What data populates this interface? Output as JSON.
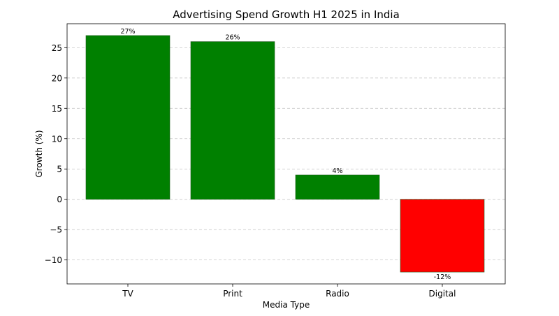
{
  "chart_data": {
    "type": "bar",
    "title": "Advertising Spend Growth H1 2025 in India",
    "xlabel": "Media Type",
    "ylabel": "Growth (%)",
    "categories": [
      "TV",
      "Print",
      "Radio",
      "Digital"
    ],
    "values": [
      27,
      26,
      4,
      -12
    ],
    "data_labels": [
      "27%",
      "26%",
      "4%",
      "-12%"
    ],
    "bar_colors": [
      "#008000",
      "#008000",
      "#008000",
      "#ff0000"
    ],
    "ylim": [
      -13.95,
      28.95
    ],
    "yticks": [
      -10,
      -5,
      0,
      5,
      10,
      15,
      20,
      25
    ],
    "ytick_labels": [
      "−10",
      "−5",
      "0",
      "5",
      "10",
      "15",
      "20",
      "25"
    ],
    "grid": "y-dashed",
    "legend": "none"
  }
}
